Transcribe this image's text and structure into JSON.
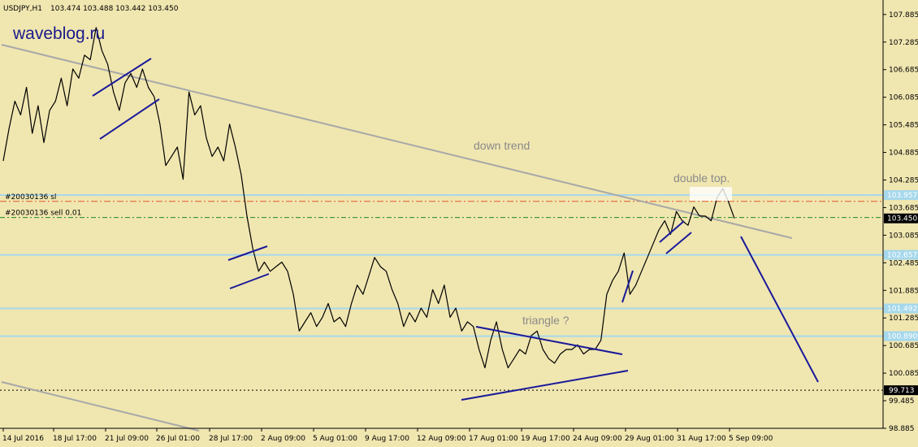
{
  "header": {
    "symbol": "USDJPY,H1",
    "ohlc": "103.474 103.488 103.442 103.450"
  },
  "watermark": "waveblog.ru",
  "colors": {
    "background": "#f0e6b0",
    "price": "#000000",
    "pattern": "#1a1a9a",
    "trend": "#a8a8a8",
    "level": "#a6d8ec",
    "order_sl": "#e05a2a",
    "order_entry": "#1e8a1e",
    "bid": "#000000"
  },
  "chart_data": {
    "type": "line",
    "y_axis": {
      "range": [
        98.885,
        108.2
      ],
      "ticks": [
        "107.885",
        "107.285",
        "106.685",
        "106.085",
        "105.485",
        "104.885",
        "104.285",
        "103.685",
        "103.085",
        "102.485",
        "101.885",
        "101.285",
        "100.685",
        "100.085",
        "99.485",
        "98.885"
      ]
    },
    "x_axis": {
      "ticks": [
        "14 Jul 2016",
        "18 Jul 17:00",
        "21 Jul 09:00",
        "26 Jul 01:00",
        "28 Jul 17:00",
        "2 Aug 09:00",
        "5 Aug 01:00",
        "9 Aug 17:00",
        "12 Aug 09:00",
        "17 Aug 01:00",
        "19 Aug 17:00",
        "24 Aug 09:00",
        "29 Aug 01:00",
        "31 Aug 17:00",
        "5 Sep 09:00"
      ]
    },
    "series": [
      {
        "values": [
          104.7,
          105.4,
          106.0,
          105.7,
          106.3,
          105.3,
          105.9,
          105.1,
          105.8,
          106.0,
          106.5,
          105.9,
          106.7,
          106.5,
          107.0,
          106.9,
          107.6,
          107.1,
          106.8,
          106.2,
          105.8,
          106.4,
          106.6,
          106.3,
          106.7,
          106.3,
          106.1,
          105.5,
          104.6,
          104.8,
          105.0,
          104.3,
          106.2,
          105.7,
          105.9,
          105.2,
          104.8,
          105.0,
          104.7,
          105.5,
          105.0,
          104.4,
          103.5,
          102.8,
          102.3,
          102.5,
          102.3,
          102.4,
          102.5,
          102.3,
          101.8,
          101.0,
          101.2,
          101.4,
          101.1,
          101.3,
          101.6,
          101.2,
          101.3,
          101.1,
          101.6,
          102.0,
          101.8,
          102.2,
          102.6,
          102.4,
          102.3,
          101.9,
          101.6,
          101.1,
          101.4,
          101.2,
          101.5,
          101.3,
          101.9,
          101.6,
          102.0,
          101.3,
          101.5,
          101.0,
          101.2,
          101.1,
          100.6,
          100.2,
          100.8,
          101.2,
          100.6,
          100.2,
          100.4,
          100.6,
          100.5,
          100.9,
          101.0,
          100.6,
          100.4,
          100.3,
          100.5,
          100.6,
          100.6,
          100.7,
          100.5,
          100.6,
          100.6,
          100.8,
          101.8,
          102.1,
          102.3,
          102.7,
          101.8,
          102.0,
          102.3,
          102.6,
          102.9,
          103.2,
          103.4,
          103.1,
          103.6,
          103.4,
          103.3,
          103.7,
          103.5,
          103.5,
          103.4,
          103.9,
          104.1,
          103.8,
          103.45
        ],
        "line_width": 1
      }
    ],
    "annotations": [
      "down trend",
      "triangle ?",
      "double top."
    ],
    "levels": [
      {
        "label": "103.957",
        "value": 103.957,
        "style": "solid"
      },
      {
        "label": "102.657",
        "value": 102.657,
        "style": "solid"
      },
      {
        "label": "101.492",
        "value": 101.492,
        "style": "solid"
      },
      {
        "label": "100.890",
        "value": 100.89,
        "style": "solid"
      },
      {
        "label": "99.713",
        "value": 99.713,
        "style": "dashed"
      },
      {
        "label": "103.450",
        "value": 103.45,
        "style": "bid"
      }
    ],
    "orders": [
      {
        "label": "#20030136 sl",
        "value": 103.82
      },
      {
        "label": "#20030136 sell 0.01",
        "value": 103.47
      }
    ]
  }
}
